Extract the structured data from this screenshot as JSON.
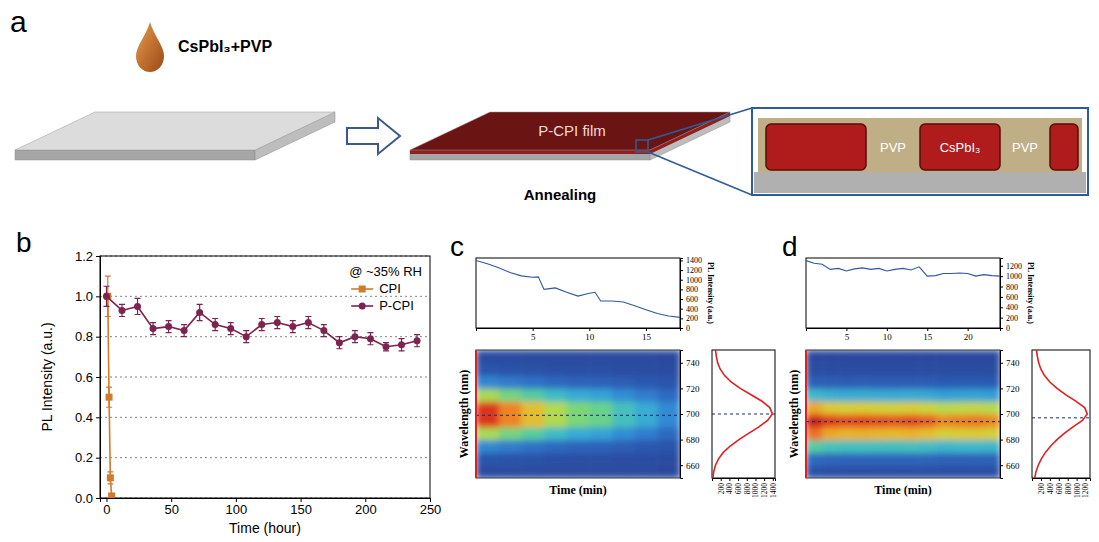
{
  "diagram": {
    "panel": "a",
    "droplet_label": "CsPbI₃+PVP",
    "film_label": "P-CPI film",
    "step_label": "Annealing",
    "inset_labels": [
      "PVP",
      "CsPbI₃",
      "PVP"
    ]
  },
  "chart_data": [
    {
      "panel": "b",
      "type": "line",
      "annotation": "@ ~35% RH",
      "xlabel": "Time (hour)",
      "ylabel": "PL Intensity (a.u.)",
      "xlim": [
        -5,
        250
      ],
      "xticks": [
        0,
        50,
        100,
        150,
        200,
        250
      ],
      "ylim": [
        0,
        1.2
      ],
      "yticks": [
        {
          "value": 0,
          "label": "0.0"
        },
        0.2,
        0.4,
        0.6,
        0.8,
        {
          "value": 1,
          "label": "1.0"
        },
        1.2
      ],
      "grid": true,
      "legend": "upper right",
      "series": [
        {
          "name": "CPI",
          "color": "#d07a2c",
          "marker": "square",
          "x": [
            1,
            2,
            3,
            4
          ],
          "values": [
            1.0,
            0.5,
            0.1,
            0.01
          ],
          "errors": [
            0.1,
            0.05,
            0.03,
            0.01
          ]
        },
        {
          "name": "P-CPI",
          "color": "#7e2350",
          "marker": "circle",
          "x": [
            0,
            12,
            24,
            36,
            48,
            60,
            72,
            84,
            96,
            108,
            120,
            132,
            144,
            156,
            168,
            180,
            192,
            204,
            216,
            228,
            240
          ],
          "values": [
            1.0,
            0.93,
            0.95,
            0.84,
            0.85,
            0.83,
            0.92,
            0.86,
            0.84,
            0.8,
            0.86,
            0.87,
            0.85,
            0.87,
            0.83,
            0.77,
            0.8,
            0.79,
            0.75,
            0.76,
            0.78
          ],
          "errors": [
            0.05,
            0.03,
            0.04,
            0.03,
            0.03,
            0.03,
            0.04,
            0.03,
            0.03,
            0.03,
            0.03,
            0.03,
            0.03,
            0.03,
            0.03,
            0.03,
            0.03,
            0.03,
            0.02,
            0.03,
            0.03
          ]
        }
      ]
    },
    {
      "panel": "c",
      "type": "line",
      "ylabel": "PL Intensity (a.u.)",
      "xlim": [
        0,
        18
      ],
      "xticks": [
        5,
        10,
        15
      ],
      "ylim": [
        0,
        1450
      ],
      "yticks": [
        0,
        200,
        400,
        600,
        800,
        1000,
        1200,
        1400
      ],
      "series": [
        {
          "color": "#2f55a4",
          "x": [
            0,
            1,
            2,
            3,
            4,
            5,
            5.5,
            6,
            7,
            8,
            9,
            10,
            10.5,
            11,
            12,
            13,
            14,
            15,
            16,
            17,
            18
          ],
          "values": [
            1400,
            1330,
            1250,
            1150,
            1080,
            1050,
            1060,
            800,
            830,
            740,
            660,
            720,
            740,
            560,
            560,
            540,
            460,
            380,
            300,
            250,
            220
          ]
        }
      ]
    },
    {
      "type": "heatmap",
      "xlabel": "Time (min)",
      "ylabel": "Wavelength (nm)",
      "tick_labels": "y",
      "xlim": [
        0,
        18
      ],
      "ylim": [
        650,
        750
      ],
      "yticks": [
        660,
        680,
        700,
        720,
        740
      ],
      "time_bins": [
        0,
        2,
        4,
        6,
        8,
        10,
        12,
        14,
        16,
        18
      ],
      "wavelength_bins": [
        650,
        660,
        670,
        680,
        690,
        700,
        710,
        720,
        730,
        740,
        750
      ],
      "cells": [
        [
          8,
          59,
          270,
          756,
          1269,
          1269,
          756,
          270,
          59,
          8
        ],
        [
          7,
          51,
          230,
          644,
          1081,
          1081,
          644,
          230,
          51,
          7
        ],
        [
          6,
          44,
          200,
          560,
          940,
          940,
          560,
          200,
          44,
          6
        ],
        [
          5,
          36,
          164,
          459,
          771,
          771,
          459,
          164,
          36,
          5
        ],
        [
          4,
          31,
          140,
          392,
          658,
          658,
          392,
          140,
          31,
          4
        ],
        [
          4,
          29,
          130,
          364,
          611,
          611,
          364,
          130,
          29,
          4
        ],
        [
          3,
          23,
          104,
          291,
          489,
          489,
          291,
          104,
          23,
          3
        ],
        [
          3,
          18,
          84,
          235,
          395,
          395,
          235,
          84,
          18,
          3
        ],
        [
          2,
          13,
          60,
          168,
          282,
          282,
          168,
          60,
          13,
          2
        ]
      ],
      "zlim": [
        0,
        1400
      ],
      "peak_wavelength": 699
    },
    {
      "type": "line",
      "orientation": "horizontal",
      "tick_labels": "x",
      "color": "#e02020",
      "xlim": [
        0,
        1450
      ],
      "xticks": [
        200,
        400,
        600,
        800,
        1000,
        1200,
        1400
      ],
      "ylim": [
        650,
        750
      ],
      "y": [
        650,
        655,
        660,
        665,
        670,
        675,
        680,
        685,
        690,
        695,
        700,
        705,
        710,
        715,
        720,
        725,
        730,
        735,
        740,
        745,
        750
      ],
      "values": [
        20,
        40,
        80,
        150,
        260,
        420,
        620,
        850,
        1080,
        1280,
        1390,
        1330,
        1150,
        900,
        650,
        440,
        290,
        190,
        130,
        100,
        80
      ],
      "peak_wavelength": 700
    },
    {
      "panel": "d",
      "type": "line",
      "ylabel": "PL Intensity (a.u.)",
      "xlim": [
        0,
        24
      ],
      "xticks": [
        5,
        10,
        15,
        20
      ],
      "ylim": [
        0,
        1350
      ],
      "yticks": [
        0,
        200,
        400,
        600,
        800,
        1000,
        1200
      ],
      "series": [
        {
          "color": "#2f55a4",
          "x": [
            0,
            1,
            2,
            3,
            4,
            5,
            6,
            7,
            8,
            9,
            10,
            11,
            12,
            13,
            14,
            15,
            16,
            17,
            18,
            19,
            20,
            21,
            22,
            23,
            24
          ],
          "values": [
            1300,
            1250,
            1230,
            1130,
            1150,
            1100,
            1140,
            1160,
            1130,
            1150,
            1100,
            1130,
            1150,
            1120,
            1180,
            1000,
            1010,
            1050,
            1050,
            1060,
            1050,
            1000,
            1030,
            1010,
            1000
          ]
        }
      ]
    },
    {
      "type": "heatmap",
      "xlabel": "Time (min)",
      "ylabel": "Wavelength (nm)",
      "tick_labels": "y",
      "xlim": [
        0,
        24
      ],
      "ylim": [
        650,
        750
      ],
      "yticks": [
        660,
        680,
        700,
        720,
        740
      ],
      "time_bins": [
        0,
        2,
        4,
        6,
        8,
        10,
        12,
        14,
        16,
        18,
        20,
        22,
        24
      ],
      "wavelength_bins": [
        650,
        660,
        670,
        680,
        690,
        700,
        710,
        720,
        730,
        740,
        750
      ],
      "cells": [
        [
          27,
          150,
          512,
          1037,
          1280,
          934,
          416,
          110,
          18,
          1
        ],
        [
          24,
          135,
          460,
          932,
          1150,
          840,
          374,
          99,
          16,
          1
        ],
        [
          24,
          131,
          448,
          907,
          1120,
          818,
          364,
          96,
          16,
          1
        ],
        [
          24,
          132,
          452,
          915,
          1130,
          825,
          367,
          97,
          16,
          1
        ],
        [
          23,
          130,
          444,
          899,
          1110,
          810,
          361,
          95,
          16,
          1
        ],
        [
          23,
          129,
          440,
          891,
          1100,
          803,
          358,
          95,
          15,
          1
        ],
        [
          24,
          131,
          448,
          907,
          1120,
          818,
          364,
          96,
          16,
          1
        ],
        [
          23,
          126,
          432,
          875,
          1080,
          788,
          351,
          93,
          15,
          1
        ],
        [
          21,
          117,
          400,
          810,
          1000,
          730,
          325,
          86,
          14,
          1
        ],
        [
          21,
          119,
          408,
          826,
          1020,
          745,
          332,
          88,
          14,
          1
        ],
        [
          22,
          121,
          412,
          834,
          1030,
          752,
          335,
          89,
          14,
          1
        ],
        [
          21,
          117,
          400,
          810,
          1000,
          730,
          325,
          86,
          14,
          1
        ]
      ],
      "zlim": [
        0,
        1300
      ],
      "peak_wavelength": 694
    },
    {
      "type": "line",
      "orientation": "horizontal",
      "tick_labels": "x",
      "color": "#e02020",
      "xlim": [
        0,
        1300
      ],
      "xticks": [
        200,
        400,
        600,
        800,
        1000,
        1200
      ],
      "ylim": [
        650,
        750
      ],
      "y": [
        650,
        655,
        660,
        665,
        670,
        675,
        680,
        685,
        690,
        695,
        700,
        705,
        710,
        715,
        720,
        725,
        730,
        735,
        740,
        745,
        750
      ],
      "values": [
        60,
        90,
        140,
        210,
        300,
        420,
        560,
        730,
        920,
        1130,
        1240,
        1180,
        980,
        760,
        560,
        400,
        280,
        200,
        150,
        120,
        100
      ],
      "peak_wavelength": 697
    }
  ]
}
